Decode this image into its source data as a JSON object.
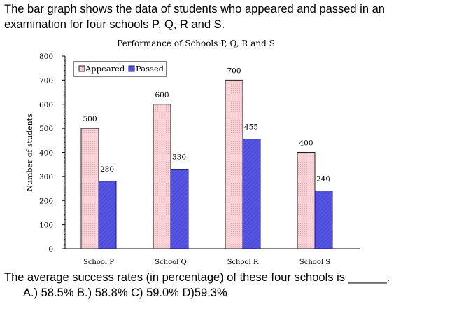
{
  "intro_text": "The bar graph shows the data of students who appeared and passed in an examination for four schools P, Q, R and S.",
  "question": {
    "text": "The average success rates (in percentage) of these four schools is",
    "blank": "______.",
    "options": "A.) 58.5%   B.) 58.8%  C) 59.0%  D)59.3%"
  },
  "colors": {
    "appeared_fill": "#f6d2d6",
    "appeared_stroke": "#222222",
    "passed_fill": "#5656e2",
    "passed_stroke": "#1a1a7a",
    "axis": "#000000"
  },
  "chart_data": {
    "type": "bar",
    "title": "Performance of Schools P, Q, R and S",
    "xlabel": "",
    "ylabel": "Number of students",
    "ylim": [
      0,
      800
    ],
    "yticks": [
      0,
      100,
      200,
      300,
      400,
      500,
      600,
      700,
      800
    ],
    "categories": [
      "School P",
      "School Q",
      "School R",
      "School S"
    ],
    "series": [
      {
        "name": "Appeared",
        "values": [
          500,
          600,
          700,
          400
        ]
      },
      {
        "name": "Passed",
        "values": [
          280,
          330,
          455,
          240
        ]
      }
    ],
    "legend": "top-left",
    "grid": false
  }
}
